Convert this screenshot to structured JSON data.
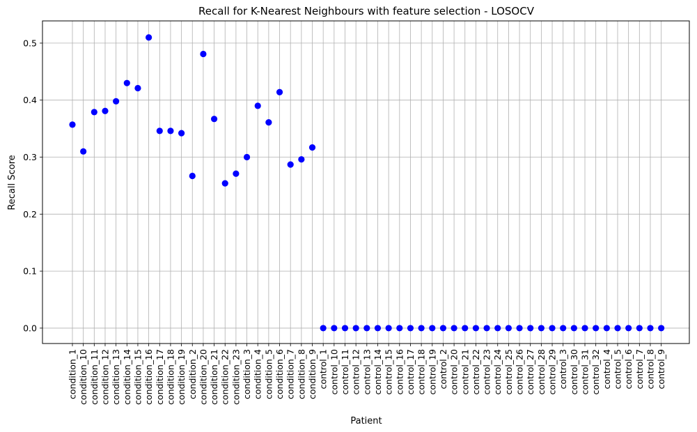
{
  "chart_data": {
    "type": "scatter",
    "title": "Recall for K-Nearest Neighbours with feature selection - LOSOCV",
    "xlabel": "Patient",
    "ylabel": "Recall Score",
    "ylim": [
      -0.027,
      0.539
    ],
    "yticks": [
      0.0,
      0.1,
      0.2,
      0.3,
      0.4,
      0.5
    ],
    "ytick_labels": [
      "0.0",
      "0.1",
      "0.2",
      "0.3",
      "0.4",
      "0.5"
    ],
    "grid": true,
    "marker_color": "#0000ff",
    "categories": [
      "condition_1",
      "condition_10",
      "condition_11",
      "condition_12",
      "condition_13",
      "condition_14",
      "condition_15",
      "condition_16",
      "condition_17",
      "condition_18",
      "condition_19",
      "condition_2",
      "condition_20",
      "condition_21",
      "condition_22",
      "condition_23",
      "condition_3",
      "condition_4",
      "condition_5",
      "condition_6",
      "condition_7",
      "condition_8",
      "condition_9",
      "control_1",
      "control_10",
      "control_11",
      "control_12",
      "control_13",
      "control_14",
      "control_15",
      "control_16",
      "control_17",
      "control_18",
      "control_19",
      "control_2",
      "control_20",
      "control_21",
      "control_22",
      "control_23",
      "control_24",
      "control_25",
      "control_26",
      "control_27",
      "control_28",
      "control_29",
      "control_3",
      "control_30",
      "control_31",
      "control_32",
      "control_4",
      "control_5",
      "control_6",
      "control_7",
      "control_8",
      "control_9"
    ],
    "values": [
      0.357,
      0.31,
      0.379,
      0.381,
      0.398,
      0.43,
      0.421,
      0.51,
      0.346,
      0.346,
      0.342,
      0.267,
      0.481,
      0.367,
      0.254,
      0.271,
      0.3,
      0.39,
      0.361,
      0.414,
      0.287,
      0.296,
      0.317,
      0.0,
      0.0,
      0.0,
      0.0,
      0.0,
      0.0,
      0.0,
      0.0,
      0.0,
      0.0,
      0.0,
      0.0,
      0.0,
      0.0,
      0.0,
      0.0,
      0.0,
      0.0,
      0.0,
      0.0,
      0.0,
      0.0,
      0.0,
      0.0,
      0.0,
      0.0,
      0.0,
      0.0,
      0.0,
      0.0,
      0.0,
      0.0
    ]
  }
}
